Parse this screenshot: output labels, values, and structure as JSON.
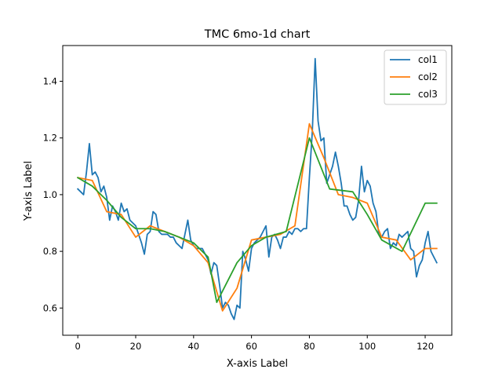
{
  "chart_data": {
    "type": "line",
    "title": "TMC 6mo-1d chart",
    "xlabel": "X-axis Label",
    "ylabel": "Y-axis Label",
    "xlim": [
      -5.2,
      129.2
    ],
    "ylim": [
      0.504,
      1.526
    ],
    "xticks": [
      0,
      20,
      40,
      60,
      80,
      100,
      120
    ],
    "yticks": [
      0.6,
      0.8,
      1.0,
      1.2,
      1.4
    ],
    "xtick_labels": [
      "0",
      "20",
      "40",
      "60",
      "80",
      "100",
      "120"
    ],
    "ytick_labels": [
      "0.6",
      "0.8",
      "1.0",
      "1.2",
      "1.4"
    ],
    "grid": false,
    "legend_position": "top-right",
    "series": [
      {
        "name": "col1",
        "color": "#1f77b4",
        "x": [
          0,
          1,
          2,
          3,
          4,
          5,
          6,
          7,
          8,
          9,
          10,
          11,
          12,
          13,
          14,
          15,
          16,
          17,
          18,
          19,
          20,
          21,
          22,
          23,
          24,
          25,
          26,
          27,
          28,
          29,
          30,
          31,
          32,
          33,
          34,
          35,
          36,
          37,
          38,
          39,
          40,
          41,
          42,
          43,
          44,
          45,
          46,
          47,
          48,
          49,
          50,
          51,
          52,
          53,
          54,
          55,
          56,
          57,
          58,
          59,
          60,
          61,
          62,
          63,
          64,
          65,
          66,
          67,
          68,
          69,
          70,
          71,
          72,
          73,
          74,
          75,
          76,
          77,
          78,
          79,
          80,
          81,
          82,
          83,
          84,
          85,
          86,
          87,
          88,
          89,
          90,
          91,
          92,
          93,
          94,
          95,
          96,
          97,
          98,
          99,
          100,
          101,
          102,
          103,
          104,
          105,
          106,
          107,
          108,
          109,
          110,
          111,
          112,
          113,
          114,
          115,
          116,
          117,
          118,
          119,
          120,
          121,
          122,
          123,
          124
        ],
        "y": [
          1.02,
          1.01,
          1.0,
          1.08,
          1.18,
          1.07,
          1.08,
          1.06,
          1.01,
          1.03,
          0.99,
          0.91,
          0.96,
          0.94,
          0.91,
          0.97,
          0.94,
          0.95,
          0.91,
          0.9,
          0.89,
          0.86,
          0.83,
          0.79,
          0.86,
          0.87,
          0.94,
          0.93,
          0.87,
          0.86,
          0.86,
          0.86,
          0.85,
          0.85,
          0.83,
          0.82,
          0.81,
          0.86,
          0.91,
          0.84,
          0.82,
          0.81,
          0.81,
          0.81,
          0.79,
          0.77,
          0.72,
          0.76,
          0.75,
          0.68,
          0.6,
          0.62,
          0.61,
          0.58,
          0.56,
          0.61,
          0.6,
          0.8,
          0.77,
          0.73,
          0.81,
          0.83,
          0.84,
          0.85,
          0.87,
          0.89,
          0.78,
          0.85,
          0.86,
          0.84,
          0.81,
          0.85,
          0.85,
          0.87,
          0.86,
          0.88,
          0.88,
          0.87,
          0.88,
          0.88,
          1.06,
          1.22,
          1.48,
          1.26,
          1.19,
          1.2,
          1.04,
          1.07,
          1.1,
          1.15,
          1.1,
          1.04,
          0.96,
          0.96,
          0.93,
          0.91,
          0.92,
          0.98,
          1.1,
          1.01,
          1.05,
          1.03,
          0.97,
          0.94,
          0.86,
          0.85,
          0.87,
          0.88,
          0.81,
          0.83,
          0.82,
          0.86,
          0.85,
          0.86,
          0.87,
          0.81,
          0.8,
          0.71,
          0.75,
          0.77,
          0.83,
          0.87,
          0.8,
          0.78,
          0.76
        ]
      },
      {
        "name": "col2",
        "color": "#ff7f0e",
        "x": [
          0,
          5,
          10,
          15,
          20,
          25,
          30,
          35,
          40,
          45,
          50,
          55,
          60,
          65,
          70,
          75,
          80,
          85,
          90,
          95,
          100,
          105,
          110,
          115,
          120,
          124
        ],
        "y": [
          1.06,
          1.05,
          0.94,
          0.93,
          0.85,
          0.89,
          0.87,
          0.85,
          0.82,
          0.76,
          0.59,
          0.67,
          0.84,
          0.85,
          0.86,
          0.89,
          1.25,
          1.13,
          1.0,
          0.99,
          0.97,
          0.85,
          0.84,
          0.77,
          0.81,
          0.81
        ]
      },
      {
        "name": "col3",
        "color": "#2ca02c",
        "x": [
          0,
          5,
          10,
          15,
          20,
          25,
          30,
          35,
          40,
          45,
          48,
          55,
          60,
          65,
          72,
          80,
          87,
          95,
          100,
          105,
          112,
          120,
          124
        ],
        "y": [
          1.06,
          1.03,
          0.98,
          0.92,
          0.88,
          0.88,
          0.87,
          0.85,
          0.83,
          0.78,
          0.62,
          0.76,
          0.82,
          0.85,
          0.87,
          1.2,
          1.02,
          1.01,
          0.93,
          0.84,
          0.8,
          0.97,
          0.97
        ]
      }
    ]
  }
}
